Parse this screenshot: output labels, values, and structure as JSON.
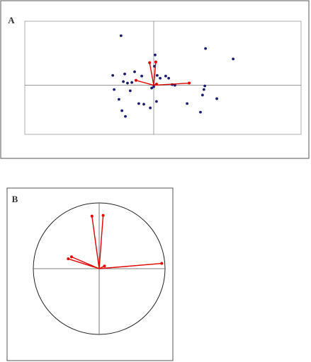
{
  "chart_data": [
    {
      "type": "biplot",
      "label": "A",
      "xlim": [
        -5.6,
        6.4
      ],
      "ylim": [
        -2.3,
        3
      ],
      "series": [
        {
          "color": "#1c1c6e",
          "x": [
            -1.42,
            2.25,
            3.45,
            0.06,
            0.03,
            -0.83,
            -1.78,
            -1.26,
            -0.52,
            0.15,
            0.52,
            0.65,
            0.28,
            -1.32,
            -1.14,
            -0.95,
            0.8,
            0.92,
            2.22,
            2.18,
            -1.72,
            -1.02,
            -0.09,
            0,
            2.12,
            -1.51,
            -0.65,
            -0.43,
            0.12,
            2.74,
            1.45,
            -0.15,
            -1.38,
            2.03,
            -1.23
          ],
          "y": [
            2.32,
            1.72,
            1.23,
            1.42,
            0.89,
            0.63,
            0.46,
            0.53,
            0.43,
            0.46,
            0.43,
            0.33,
            0.33,
            0.17,
            0.1,
            0.13,
            0.03,
            0,
            -0.03,
            -0.2,
            -0.2,
            -0.26,
            -0.13,
            -0.07,
            -0.46,
            -0.66,
            -0.86,
            -0.89,
            -0.76,
            -0.63,
            -0.86,
            -1.06,
            -1.19,
            -1.26,
            -1.46
          ]
        }
      ],
      "vectors": {
        "color": "#e00000",
        "x": [
          -0.18,
          0.09,
          -0.77,
          1.54,
          0.12
        ],
        "y": [
          1.06,
          1.09,
          0.23,
          0.1,
          0.05
        ]
      }
    },
    {
      "type": "correlation-circle",
      "label": "B",
      "xlim": [
        -1,
        1
      ],
      "ylim": [
        -1,
        1
      ],
      "vectors": {
        "color": "#e00000",
        "x": [
          -0.11,
          0.06,
          -0.47,
          -0.42,
          0.95,
          0.08
        ],
        "y": [
          0.8,
          0.81,
          0.15,
          0.18,
          0.08,
          0.04
        ]
      }
    }
  ]
}
